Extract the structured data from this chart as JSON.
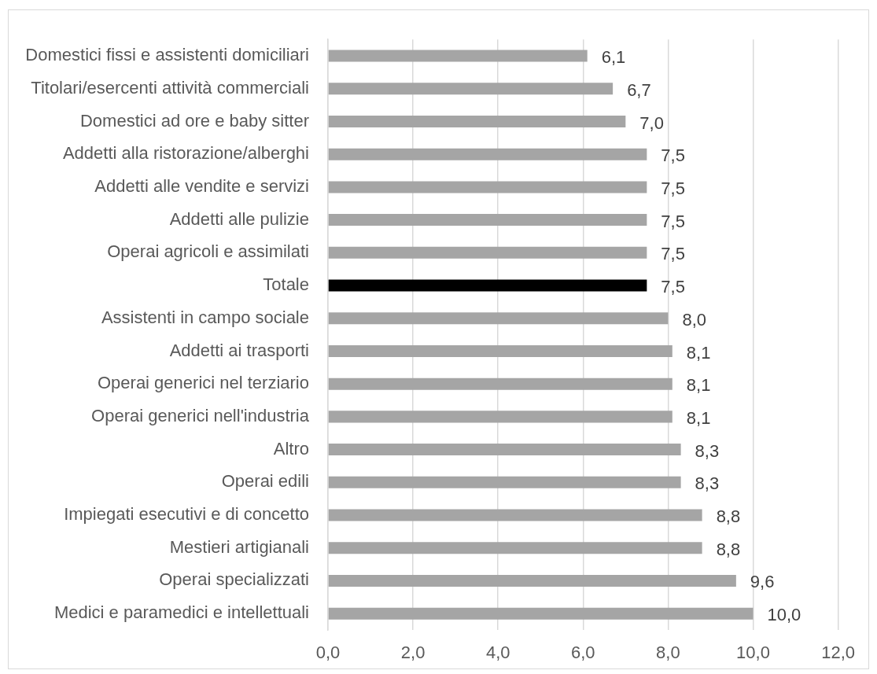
{
  "chart_data": {
    "type": "bar",
    "orientation": "horizontal",
    "categories": [
      "Domestici fissi e assistenti domiciliari",
      "Titolari/esercenti attività commerciali",
      "Domestici ad ore e baby sitter",
      "Addetti alla ristorazione/alberghi",
      "Addetti alle vendite e servizi",
      "Addetti alle pulizie",
      "Operai agricoli e assimilati",
      "Totale",
      "Assistenti in campo sociale",
      "Addetti ai trasporti",
      "Operai generici nel terziario",
      "Operai generici nell'industria",
      "Altro",
      "Operai edili",
      "Impiegati esecutivi e di concetto",
      "Mestieri artigianali",
      "Operai specializzati",
      "Medici e paramedici e intellettuali"
    ],
    "values": [
      6.1,
      6.7,
      7.0,
      7.5,
      7.5,
      7.5,
      7.5,
      7.5,
      8.0,
      8.1,
      8.1,
      8.1,
      8.3,
      8.3,
      8.8,
      8.8,
      9.6,
      10.0
    ],
    "colors": [
      "#a5a5a5",
      "#a5a5a5",
      "#a5a5a5",
      "#a5a5a5",
      "#a5a5a5",
      "#a5a5a5",
      "#a5a5a5",
      "#000000",
      "#a5a5a5",
      "#a5a5a5",
      "#a5a5a5",
      "#a5a5a5",
      "#a5a5a5",
      "#a5a5a5",
      "#a5a5a5",
      "#a5a5a5",
      "#a5a5a5",
      "#a5a5a5"
    ],
    "value_labels": [
      "6,1",
      "6,7",
      "7,0",
      "7,5",
      "7,5",
      "7,5",
      "7,5",
      "7,5",
      "8,0",
      "8,1",
      "8,1",
      "8,1",
      "8,3",
      "8,3",
      "8,8",
      "8,8",
      "9,6",
      "10,0"
    ],
    "xlim": [
      0,
      12
    ],
    "xticks": [
      {
        "value": 0,
        "label": "0,0"
      },
      {
        "value": 2,
        "label": "2,0"
      },
      {
        "value": 4,
        "label": "4,0"
      },
      {
        "value": 6,
        "label": "6,0"
      },
      {
        "value": 8,
        "label": "8,0"
      },
      {
        "value": 10,
        "label": "10,0"
      },
      {
        "value": 12,
        "label": "12,0"
      }
    ],
    "grid": "x"
  }
}
